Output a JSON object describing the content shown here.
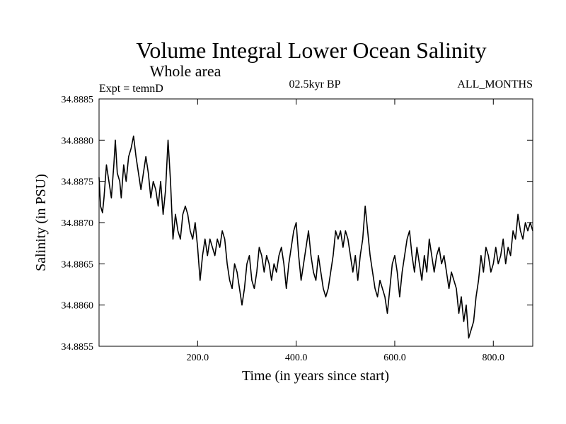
{
  "chart_data": {
    "type": "line",
    "title": "Volume Integral Lower Ocean Salinity",
    "subtitle": "Whole area",
    "annotations": {
      "experiment": "Expt = temnD",
      "period": "02.5kyr BP",
      "months": "ALL_MONTHS"
    },
    "xlabel": "Time (in years since start)",
    "ylabel": "Salinity (in PSU)",
    "xlim": [
      0,
      880
    ],
    "ylim": [
      34.8855,
      34.8885
    ],
    "x_ticks": [
      200,
      400,
      600,
      800
    ],
    "x_tick_labels": [
      "200.0",
      "400.0",
      "600.0",
      "800.0"
    ],
    "y_ticks": [
      34.8855,
      34.886,
      34.8865,
      34.887,
      34.8875,
      34.888,
      34.8885
    ],
    "y_tick_labels": [
      "34.8855",
      "34.8860",
      "34.8865",
      "34.8870",
      "34.8875",
      "34.8880",
      "34.8885"
    ],
    "series": [
      {
        "name": "salinity",
        "color": "#000000",
        "points": [
          [
            0,
            34.88755
          ],
          [
            3,
            34.8872
          ],
          [
            7,
            34.88712
          ],
          [
            10,
            34.8873
          ],
          [
            15,
            34.8877
          ],
          [
            20,
            34.8875
          ],
          [
            25,
            34.8873
          ],
          [
            30,
            34.8877
          ],
          [
            33,
            34.888
          ],
          [
            37,
            34.8876
          ],
          [
            42,
            34.8875
          ],
          [
            45,
            34.8873
          ],
          [
            50,
            34.8877
          ],
          [
            55,
            34.8875
          ],
          [
            60,
            34.8878
          ],
          [
            65,
            34.8879
          ],
          [
            70,
            34.88805
          ],
          [
            75,
            34.8878
          ],
          [
            80,
            34.8876
          ],
          [
            85,
            34.8874
          ],
          [
            90,
            34.8876
          ],
          [
            95,
            34.8878
          ],
          [
            100,
            34.8876
          ],
          [
            105,
            34.8873
          ],
          [
            110,
            34.8875
          ],
          [
            115,
            34.8874
          ],
          [
            120,
            34.8872
          ],
          [
            125,
            34.8875
          ],
          [
            130,
            34.8871
          ],
          [
            135,
            34.8874
          ],
          [
            140,
            34.888
          ],
          [
            145,
            34.8875
          ],
          [
            150,
            34.8868
          ],
          [
            155,
            34.8871
          ],
          [
            160,
            34.8869
          ],
          [
            165,
            34.8868
          ],
          [
            170,
            34.8871
          ],
          [
            175,
            34.8872
          ],
          [
            180,
            34.8871
          ],
          [
            185,
            34.8869
          ],
          [
            190,
            34.8868
          ],
          [
            195,
            34.887
          ],
          [
            200,
            34.8867
          ],
          [
            205,
            34.8863
          ],
          [
            210,
            34.8866
          ],
          [
            215,
            34.8868
          ],
          [
            220,
            34.8866
          ],
          [
            225,
            34.8868
          ],
          [
            230,
            34.8867
          ],
          [
            235,
            34.8866
          ],
          [
            240,
            34.8868
          ],
          [
            245,
            34.8867
          ],
          [
            250,
            34.8869
          ],
          [
            255,
            34.8868
          ],
          [
            260,
            34.8865
          ],
          [
            265,
            34.8863
          ],
          [
            270,
            34.8862
          ],
          [
            275,
            34.8865
          ],
          [
            280,
            34.8864
          ],
          [
            285,
            34.8862
          ],
          [
            290,
            34.886
          ],
          [
            295,
            34.8862
          ],
          [
            300,
            34.8865
          ],
          [
            305,
            34.8866
          ],
          [
            310,
            34.8863
          ],
          [
            315,
            34.8862
          ],
          [
            320,
            34.8864
          ],
          [
            325,
            34.8867
          ],
          [
            330,
            34.8866
          ],
          [
            335,
            34.8864
          ],
          [
            340,
            34.8866
          ],
          [
            345,
            34.8865
          ],
          [
            350,
            34.8863
          ],
          [
            355,
            34.8865
          ],
          [
            360,
            34.8864
          ],
          [
            365,
            34.8866
          ],
          [
            370,
            34.8867
          ],
          [
            375,
            34.8865
          ],
          [
            380,
            34.8862
          ],
          [
            385,
            34.8865
          ],
          [
            390,
            34.8867
          ],
          [
            395,
            34.8869
          ],
          [
            400,
            34.887
          ],
          [
            405,
            34.8866
          ],
          [
            410,
            34.8863
          ],
          [
            415,
            34.8865
          ],
          [
            420,
            34.8867
          ],
          [
            425,
            34.8869
          ],
          [
            430,
            34.8866
          ],
          [
            435,
            34.8864
          ],
          [
            440,
            34.8863
          ],
          [
            445,
            34.8866
          ],
          [
            450,
            34.8864
          ],
          [
            455,
            34.8862
          ],
          [
            460,
            34.8861
          ],
          [
            465,
            34.8862
          ],
          [
            470,
            34.8864
          ],
          [
            475,
            34.8866
          ],
          [
            480,
            34.8869
          ],
          [
            485,
            34.8868
          ],
          [
            490,
            34.8869
          ],
          [
            495,
            34.8867
          ],
          [
            500,
            34.8869
          ],
          [
            505,
            34.8868
          ],
          [
            510,
            34.8866
          ],
          [
            515,
            34.8864
          ],
          [
            520,
            34.8866
          ],
          [
            525,
            34.8863
          ],
          [
            530,
            34.8866
          ],
          [
            535,
            34.8868
          ],
          [
            540,
            34.8872
          ],
          [
            545,
            34.8869
          ],
          [
            550,
            34.8866
          ],
          [
            555,
            34.8864
          ],
          [
            560,
            34.8862
          ],
          [
            565,
            34.8861
          ],
          [
            570,
            34.8863
          ],
          [
            575,
            34.8862
          ],
          [
            580,
            34.8861
          ],
          [
            585,
            34.8859
          ],
          [
            590,
            34.8862
          ],
          [
            595,
            34.8865
          ],
          [
            600,
            34.8866
          ],
          [
            605,
            34.8864
          ],
          [
            610,
            34.8861
          ],
          [
            615,
            34.8864
          ],
          [
            620,
            34.8866
          ],
          [
            625,
            34.8868
          ],
          [
            630,
            34.8869
          ],
          [
            635,
            34.8866
          ],
          [
            640,
            34.8864
          ],
          [
            645,
            34.8867
          ],
          [
            650,
            34.8865
          ],
          [
            655,
            34.8863
          ],
          [
            660,
            34.8866
          ],
          [
            665,
            34.8864
          ],
          [
            670,
            34.8868
          ],
          [
            675,
            34.8866
          ],
          [
            680,
            34.8864
          ],
          [
            685,
            34.8866
          ],
          [
            690,
            34.8867
          ],
          [
            695,
            34.8865
          ],
          [
            700,
            34.8866
          ],
          [
            705,
            34.8864
          ],
          [
            710,
            34.8862
          ],
          [
            715,
            34.8864
          ],
          [
            720,
            34.8863
          ],
          [
            725,
            34.8862
          ],
          [
            730,
            34.8859
          ],
          [
            735,
            34.8861
          ],
          [
            740,
            34.8858
          ],
          [
            745,
            34.886
          ],
          [
            750,
            34.8856
          ],
          [
            755,
            34.8857
          ],
          [
            760,
            34.8858
          ],
          [
            765,
            34.8861
          ],
          [
            770,
            34.8863
          ],
          [
            775,
            34.8866
          ],
          [
            780,
            34.8864
          ],
          [
            785,
            34.8867
          ],
          [
            790,
            34.8866
          ],
          [
            795,
            34.8864
          ],
          [
            800,
            34.8865
          ],
          [
            805,
            34.8867
          ],
          [
            810,
            34.8865
          ],
          [
            815,
            34.8866
          ],
          [
            820,
            34.8868
          ],
          [
            825,
            34.8865
          ],
          [
            830,
            34.8867
          ],
          [
            835,
            34.8866
          ],
          [
            840,
            34.8869
          ],
          [
            845,
            34.8868
          ],
          [
            850,
            34.8871
          ],
          [
            855,
            34.8869
          ],
          [
            860,
            34.8868
          ],
          [
            865,
            34.887
          ],
          [
            870,
            34.8869
          ],
          [
            875,
            34.887
          ],
          [
            880,
            34.8869
          ]
        ]
      }
    ]
  }
}
